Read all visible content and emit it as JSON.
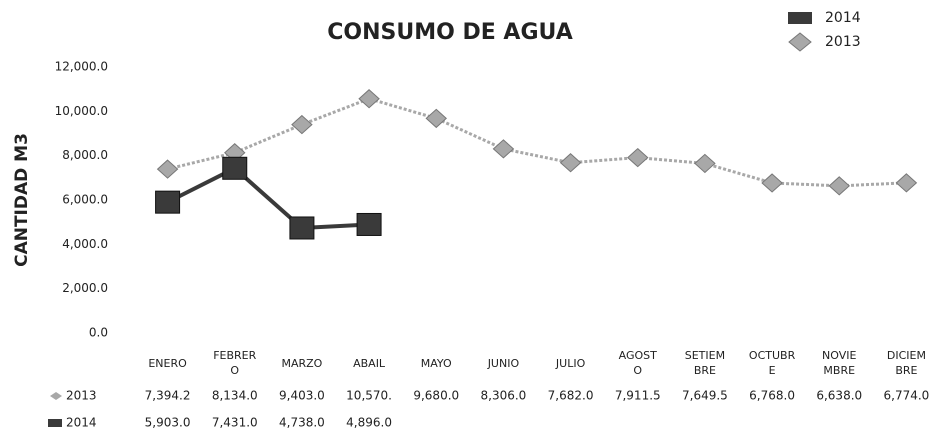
{
  "chart_data": {
    "type": "line",
    "title": "CONSUMO DE AGUA",
    "y_label": "CANTIDAD M3",
    "categories": [
      "ENERO",
      "FEBRER\nO",
      "MARZO",
      "ABAIL",
      "MAYO",
      "JUNIO",
      "JULIO",
      "AGOST\nO",
      "SETIEM\nBRE",
      "OCTUBR\nE",
      "NOVIE\nMBRE",
      "DICIEM\nBRE"
    ],
    "series": [
      {
        "name": "2013",
        "color": "#a8a8a8",
        "marker": "diamond",
        "values": [
          7394.2,
          8134.0,
          9403.0,
          10570,
          9680.0,
          8306.0,
          7682.0,
          7911.5,
          7649.5,
          6768.0,
          6638.0,
          6774.0
        ],
        "value_labels": [
          "7,394.2",
          "8,134.0",
          "9,403.0",
          "10,570.",
          "9,680.0",
          "8,306.0",
          "7,682.0",
          "7,911.5",
          "7,649.5",
          "6,768.0",
          "6,638.0",
          "6,774.0"
        ]
      },
      {
        "name": "2014",
        "color": "#3a3a3a",
        "marker": "square",
        "values": [
          5903.0,
          7431.0,
          4738.0,
          4896.0,
          null,
          null,
          null,
          null,
          null,
          null,
          null,
          null
        ],
        "value_labels": [
          "5,903.0",
          "7,431.0",
          "4,738.0",
          "4,896.0",
          null,
          null,
          null,
          null,
          null,
          null,
          null,
          null
        ]
      }
    ],
    "ylim": [
      0,
      12000
    ],
    "yticks": [
      {
        "value": 0,
        "label": "0.0"
      },
      {
        "value": 2000,
        "label": "2,000.0"
      },
      {
        "value": 4000,
        "label": "4,000.0"
      },
      {
        "value": 6000,
        "label": "6,000.0"
      },
      {
        "value": 8000,
        "label": "8,000.0"
      },
      {
        "value": 10000,
        "label": "10,000.0"
      },
      {
        "value": 12000,
        "label": "12,000.0"
      }
    ],
    "grid": false,
    "legend": "top-right"
  }
}
